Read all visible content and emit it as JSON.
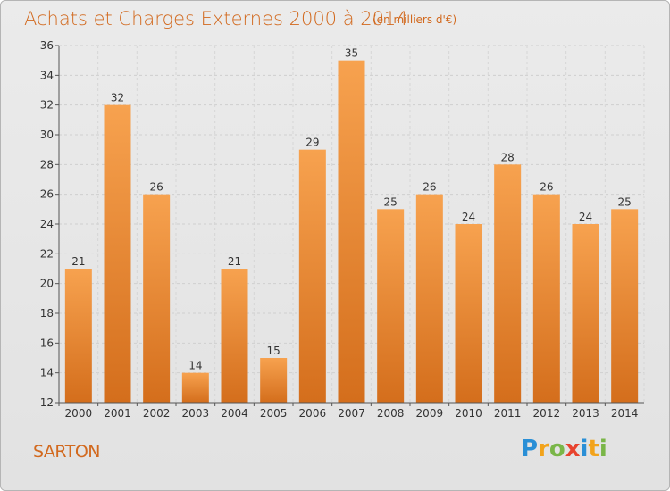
{
  "chart_data": {
    "type": "bar",
    "title": "Achats et Charges Externes 2000 à 2014",
    "subtitle": "(en milliers d'€)",
    "categories": [
      "2000",
      "2001",
      "2002",
      "2003",
      "2004",
      "2005",
      "2006",
      "2007",
      "2008",
      "2009",
      "2010",
      "2011",
      "2012",
      "2013",
      "2014"
    ],
    "values": [
      21,
      32,
      26,
      14,
      21,
      15,
      29,
      35,
      25,
      26,
      24,
      28,
      26,
      24,
      25
    ],
    "ylim": [
      12,
      36
    ],
    "yticks": [
      12,
      14,
      16,
      18,
      20,
      22,
      24,
      26,
      28,
      30,
      32,
      34,
      36
    ],
    "grid": true,
    "bar_color_top": "#f7a24f",
    "bar_color_bottom": "#d46e1c"
  },
  "location_label": "SARTON",
  "brand": {
    "letters": [
      "P",
      "r",
      "o",
      "x",
      "i",
      "t",
      "i"
    ],
    "colors": [
      "#2a8fd6",
      "#f2a31b",
      "#7ab648",
      "#e8432e",
      "#2a8fd6",
      "#f2a31b",
      "#7ab648"
    ]
  }
}
